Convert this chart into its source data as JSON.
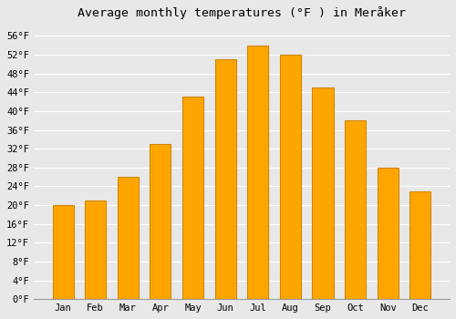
{
  "title": "Average monthly temperatures (°F ) in Meråker",
  "months": [
    "Jan",
    "Feb",
    "Mar",
    "Apr",
    "May",
    "Jun",
    "Jul",
    "Aug",
    "Sep",
    "Oct",
    "Nov",
    "Dec"
  ],
  "values": [
    20,
    21,
    26,
    33,
    43,
    51,
    54,
    52,
    45,
    38,
    28,
    23
  ],
  "bar_color": "#FFA500",
  "bar_edge_color": "#CC8800",
  "background_color": "#E8E8E8",
  "grid_color": "#FFFFFF",
  "ylim": [
    0,
    58
  ],
  "yticks": [
    0,
    4,
    8,
    12,
    16,
    20,
    24,
    28,
    32,
    36,
    40,
    44,
    48,
    52,
    56
  ],
  "ylabel_format": "°F",
  "title_fontsize": 9.5,
  "tick_fontsize": 7.5,
  "font_family": "monospace",
  "bar_width": 0.65
}
